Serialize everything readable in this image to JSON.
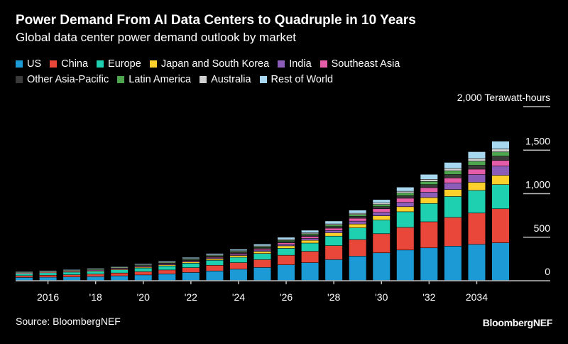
{
  "title": "Power Demand From AI Data Centers to Quadruple in 10 Years",
  "subtitle": "Global data center power demand outlook by market",
  "source": "Source: BloombergNEF",
  "brand": "BloombergNEF",
  "chart_data": {
    "type": "bar",
    "stacked": true,
    "title": "Power Demand From AI Data Centers to Quadruple in 10 Years",
    "subtitle": "Global data center power demand outlook by market",
    "ylabel": "Terawatt-hours",
    "ylim": [
      0,
      2000
    ],
    "yticks": [
      0,
      500,
      1000,
      1500,
      2000
    ],
    "ytick_labels": [
      "0",
      "500",
      "1,000",
      "1,500",
      "2,000 Terawatt-hours"
    ],
    "grid": true,
    "legend_position": "top",
    "categories": [
      2015,
      2016,
      2017,
      2018,
      2019,
      2020,
      2021,
      2022,
      2023,
      2024,
      2025,
      2026,
      2027,
      2028,
      2029,
      2030,
      2031,
      2032,
      2033,
      2034,
      2035
    ],
    "xtick_labels": [
      {
        "year": 2016,
        "label": "2016"
      },
      {
        "year": 2018,
        "label": "'18"
      },
      {
        "year": 2020,
        "label": "'20"
      },
      {
        "year": 2022,
        "label": "'22"
      },
      {
        "year": 2024,
        "label": "'24"
      },
      {
        "year": 2026,
        "label": "'26"
      },
      {
        "year": 2028,
        "label": "'28"
      },
      {
        "year": 2030,
        "label": "'30"
      },
      {
        "year": 2032,
        "label": "'32"
      },
      {
        "year": 2034,
        "label": "2034"
      }
    ],
    "series": [
      {
        "name": "US",
        "color": "#1b9ad6",
        "values": [
          35,
          38,
          41,
          46,
          54,
          64,
          76,
          92,
          110,
          130,
          150,
          180,
          205,
          240,
          280,
          318,
          350,
          375,
          395,
          415,
          433
        ]
      },
      {
        "name": "China",
        "color": "#e8473a",
        "values": [
          20,
          23,
          25,
          28,
          32,
          38,
          45,
          55,
          65,
          75,
          90,
          110,
          130,
          160,
          190,
          220,
          260,
          300,
          330,
          360,
          391
        ]
      },
      {
        "name": "Europe",
        "color": "#1ecfb0",
        "values": [
          25,
          28,
          30,
          33,
          37,
          42,
          47,
          52,
          58,
          62,
          70,
          80,
          95,
          110,
          135,
          156,
          180,
          210,
          240,
          260,
          278
        ]
      },
      {
        "name": "Japan and South Korea",
        "color": "#fdd02c",
        "values": [
          5,
          6,
          6,
          7,
          8,
          10,
          12,
          14,
          16,
          20,
          24,
          28,
          32,
          38,
          44,
          49,
          58,
          68,
          80,
          93,
          106
        ]
      },
      {
        "name": "India",
        "color": "#8b5cb8",
        "values": [
          2,
          2,
          3,
          3,
          4,
          5,
          6,
          8,
          10,
          12,
          15,
          18,
          22,
          27,
          33,
          40,
          50,
          62,
          76,
          90,
          106
        ]
      },
      {
        "name": "Southeast Asia",
        "color": "#e55ca8",
        "values": [
          2,
          2,
          3,
          3,
          4,
          5,
          6,
          7,
          9,
          12,
          14,
          17,
          21,
          26,
          33,
          41,
          47,
          52,
          57,
          61,
          65
        ]
      },
      {
        "name": "Other Asia-Pacific",
        "color": "#3a3a3a",
        "values": [
          4,
          5,
          5,
          6,
          7,
          8,
          9,
          10,
          11,
          13,
          14,
          15,
          17,
          19,
          22,
          25,
          30,
          35,
          40,
          45,
          49
        ]
      },
      {
        "name": "Latin America",
        "color": "#4ea64f",
        "values": [
          3,
          3,
          4,
          4,
          5,
          6,
          7,
          8,
          9,
          10,
          11,
          13,
          15,
          18,
          21,
          24,
          30,
          36,
          42,
          46,
          49
        ]
      },
      {
        "name": "Australia",
        "color": "#d0d0d0",
        "values": [
          3,
          3,
          3,
          4,
          4,
          5,
          5,
          6,
          7,
          8,
          9,
          10,
          11,
          12,
          14,
          17,
          20,
          24,
          27,
          30,
          33
        ]
      },
      {
        "name": "Rest of World",
        "color": "#a8d8f0",
        "values": [
          5,
          5,
          6,
          7,
          8,
          10,
          12,
          14,
          16,
          18,
          22,
          26,
          30,
          34,
          37,
          40,
          48,
          58,
          70,
          80,
          90
        ]
      }
    ]
  }
}
